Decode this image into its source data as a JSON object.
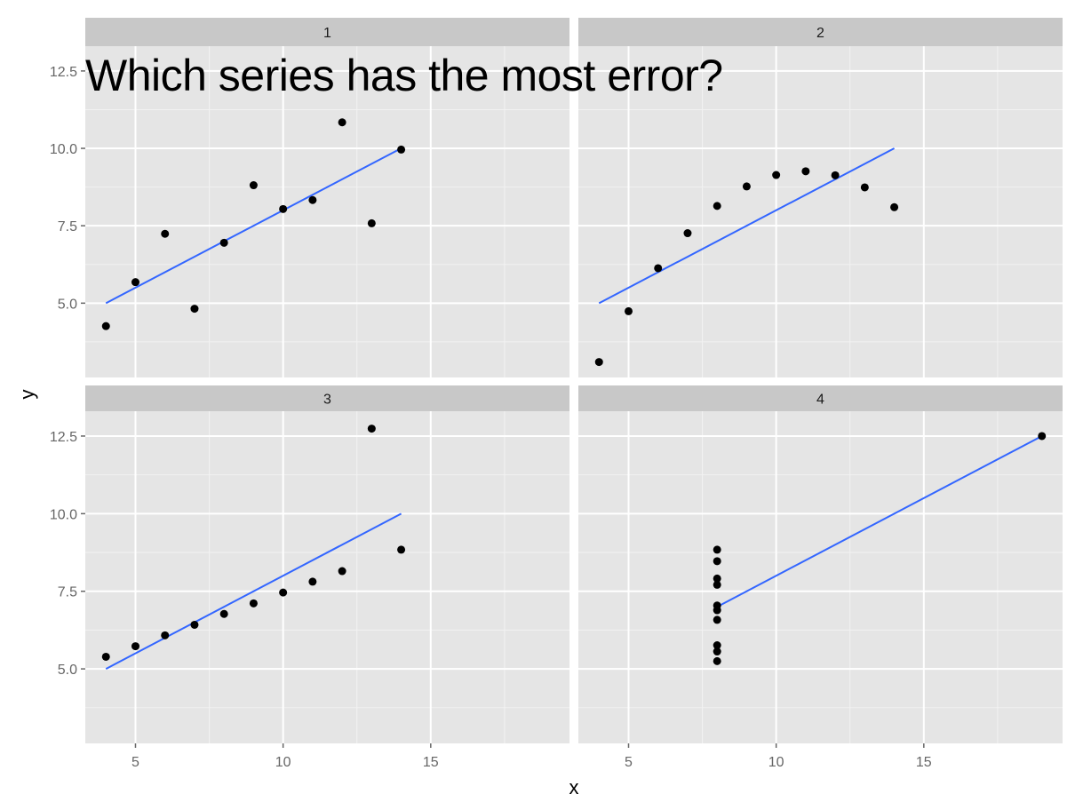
{
  "overlay_text": "Which series has the most error?",
  "chart_data": {
    "type": "scatter",
    "facet_layout": "2x2",
    "xlabel": "x",
    "ylabel": "y",
    "xlim": [
      3.3,
      19.7
    ],
    "ylim": [
      2.6,
      13.3
    ],
    "x_ticks": [
      5,
      10,
      15
    ],
    "y_ticks": [
      5.0,
      7.5,
      10.0,
      12.5
    ],
    "y_tick_labels": [
      "5.0",
      "7.5",
      "10.0",
      "12.5"
    ],
    "colors": {
      "panel_bg": "#e5e5e5",
      "grid": "#ffffff",
      "strip_bg": "#c8c8c8",
      "point": "#000000",
      "fit_line": "#3366ff",
      "tick_label": "#666666"
    },
    "panels": [
      {
        "label": "1",
        "points": [
          [
            10,
            8.04
          ],
          [
            8,
            6.95
          ],
          [
            13,
            7.58
          ],
          [
            9,
            8.81
          ],
          [
            11,
            8.33
          ],
          [
            14,
            9.96
          ],
          [
            6,
            7.24
          ],
          [
            4,
            4.26
          ],
          [
            12,
            10.84
          ],
          [
            7,
            4.82
          ],
          [
            5,
            5.68
          ]
        ],
        "fit": {
          "x": [
            4,
            14
          ],
          "y": [
            5.0,
            10.0
          ]
        }
      },
      {
        "label": "2",
        "points": [
          [
            10,
            9.14
          ],
          [
            8,
            8.14
          ],
          [
            13,
            8.74
          ],
          [
            9,
            8.77
          ],
          [
            11,
            9.26
          ],
          [
            14,
            8.1
          ],
          [
            6,
            6.13
          ],
          [
            4,
            3.1
          ],
          [
            12,
            9.13
          ],
          [
            7,
            7.26
          ],
          [
            5,
            4.74
          ]
        ],
        "fit": {
          "x": [
            4,
            14
          ],
          "y": [
            5.0,
            10.0
          ]
        }
      },
      {
        "label": "3",
        "points": [
          [
            10,
            7.46
          ],
          [
            8,
            6.77
          ],
          [
            13,
            12.74
          ],
          [
            9,
            7.11
          ],
          [
            11,
            7.81
          ],
          [
            14,
            8.84
          ],
          [
            6,
            6.08
          ],
          [
            4,
            5.39
          ],
          [
            12,
            8.15
          ],
          [
            7,
            6.42
          ],
          [
            5,
            5.73
          ]
        ],
        "fit": {
          "x": [
            4,
            14
          ],
          "y": [
            5.0,
            10.0
          ]
        }
      },
      {
        "label": "4",
        "points": [
          [
            8,
            6.58
          ],
          [
            8,
            5.76
          ],
          [
            8,
            7.71
          ],
          [
            8,
            8.84
          ],
          [
            8,
            8.47
          ],
          [
            8,
            7.04
          ],
          [
            8,
            5.25
          ],
          [
            19,
            12.5
          ],
          [
            8,
            5.56
          ],
          [
            8,
            7.91
          ],
          [
            8,
            6.89
          ]
        ],
        "fit": {
          "x": [
            8,
            19
          ],
          "y": [
            7.0,
            12.5
          ]
        }
      }
    ]
  }
}
